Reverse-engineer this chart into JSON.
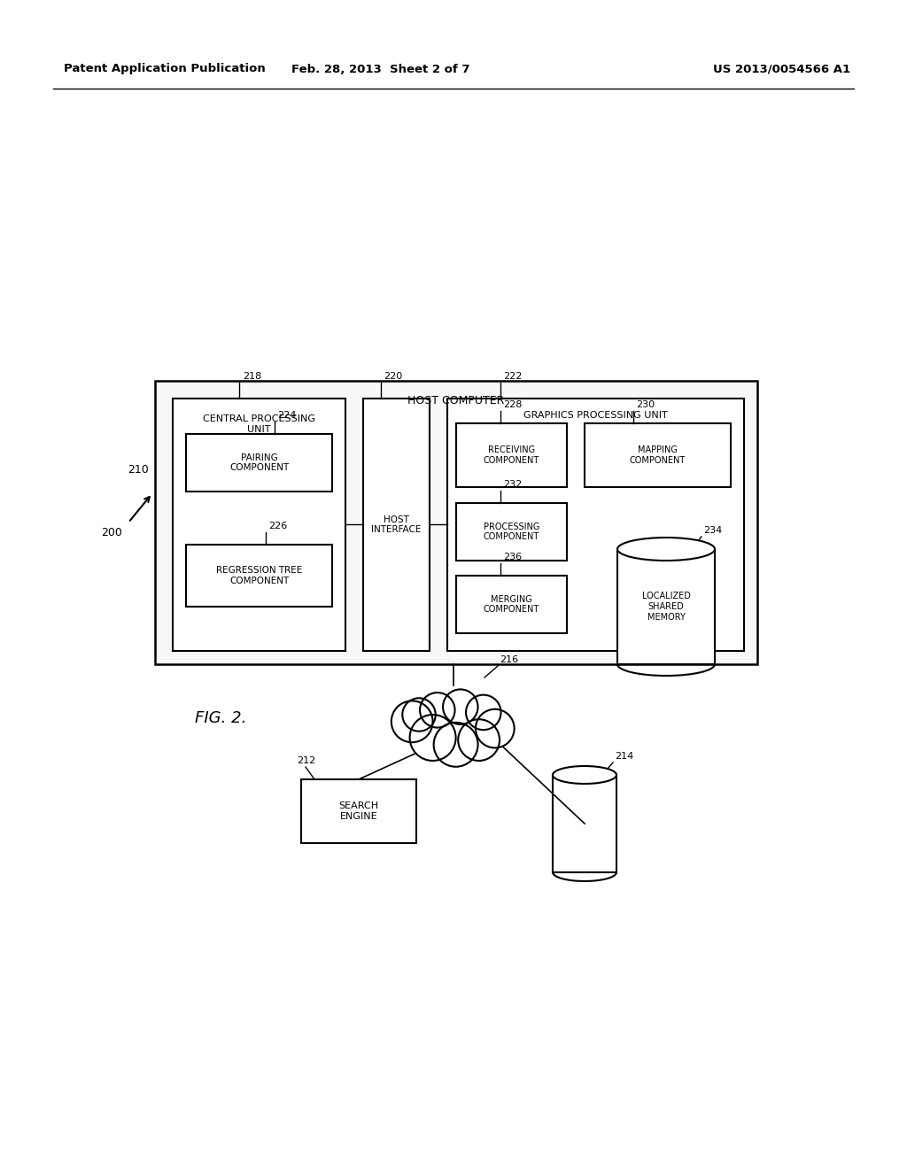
{
  "bg_color": "#ffffff",
  "header_left": "Patent Application Publication",
  "header_mid": "Feb. 28, 2013  Sheet 2 of 7",
  "header_right": "US 2013/0054566 A1",
  "fig_label": "FIG. 2.",
  "label_200": "200",
  "label_210": "210",
  "label_212": "212",
  "label_214": "214",
  "label_216": "216",
  "label_218": "218",
  "label_220": "220",
  "label_222": "222",
  "label_224": "224",
  "label_226": "226",
  "label_228": "228",
  "label_230": "230",
  "label_232": "232",
  "label_234": "234",
  "label_236": "236",
  "text_host_computer": "HOST COMPUTER",
  "text_cpu": "CENTRAL PROCESSING\nUNIT",
  "text_host_interface": "HOST\nINTERFACE",
  "text_gpu": "GRAPHICS PROCESSING UNIT",
  "text_pairing": "PAIRING\nCOMPONENT",
  "text_regression": "REGRESSION TREE\nCOMPONENT",
  "text_receiving": "RECEIVING\nCOMPONENT",
  "text_mapping": "MAPPING\nCOMPONENT",
  "text_processing": "PROCESSING\nCOMPONENT",
  "text_merging": "MERGING\nCOMPONENT",
  "text_localized": "LOCALIZED\nSHARED\nMEMORY",
  "text_search": "SEARCH\nENGINE"
}
